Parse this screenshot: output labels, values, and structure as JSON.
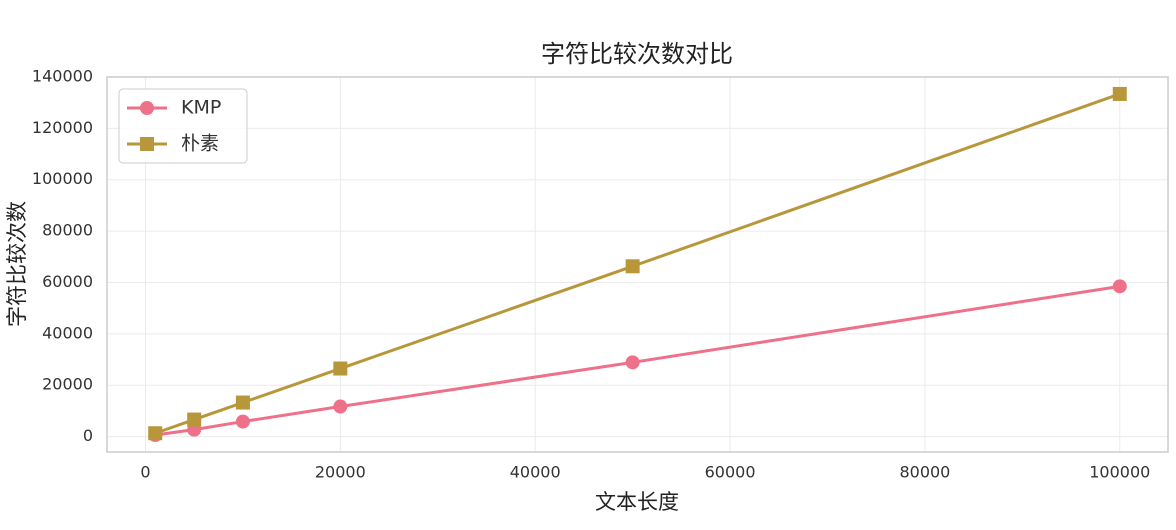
{
  "chart_data": {
    "type": "line",
    "title": "字符比较次数对比",
    "xlabel": "文本长度",
    "ylabel": "字符比较次数",
    "x": [
      1000,
      5000,
      10000,
      20000,
      50000,
      100000
    ],
    "series": [
      {
        "name": "KMP",
        "color": "#ef7089",
        "marker": "circle",
        "values": [
          600,
          2700,
          5850,
          11700,
          28900,
          58500
        ]
      },
      {
        "name": "朴素",
        "color": "#b8963a",
        "marker": "square",
        "values": [
          1300,
          6630,
          13260,
          26500,
          66300,
          133400
        ]
      }
    ],
    "xlim": [
      -3950,
      104950
    ],
    "xticks": [
      0,
      20000,
      40000,
      60000,
      80000,
      100000
    ],
    "ylim": [
      -6000,
      140000
    ],
    "yticks": [
      0,
      20000,
      40000,
      60000,
      80000,
      100000,
      120000,
      140000
    ],
    "grid": true,
    "legend": "upper left"
  }
}
